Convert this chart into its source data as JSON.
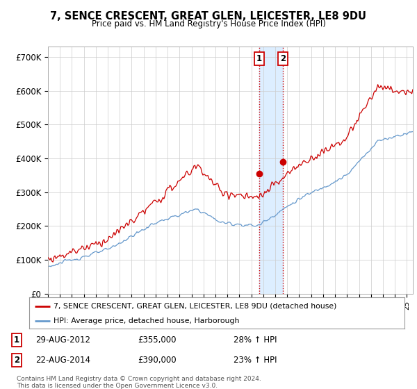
{
  "title": "7, SENCE CRESCENT, GREAT GLEN, LEICESTER, LE8 9DU",
  "subtitle": "Price paid vs. HM Land Registry's House Price Index (HPI)",
  "ylabel_ticks": [
    "£0",
    "£100K",
    "£200K",
    "£300K",
    "£400K",
    "£500K",
    "£600K",
    "£700K"
  ],
  "ylim": [
    0,
    730000
  ],
  "xlim_start": 1995.0,
  "xlim_end": 2025.5,
  "legend_line1": "7, SENCE CRESCENT, GREAT GLEN, LEICESTER, LE8 9DU (detached house)",
  "legend_line2": "HPI: Average price, detached house, Harborough",
  "marker1_date": 2012.66,
  "marker1_price": 355000,
  "marker2_date": 2014.64,
  "marker2_price": 390000,
  "footer": "Contains HM Land Registry data © Crown copyright and database right 2024.\nThis data is licensed under the Open Government Licence v3.0.",
  "hpi_color": "#6699cc",
  "price_color": "#cc0000",
  "bg_color": "#ffffff",
  "grid_color": "#cccccc",
  "highlight_color": "#ddeeff"
}
